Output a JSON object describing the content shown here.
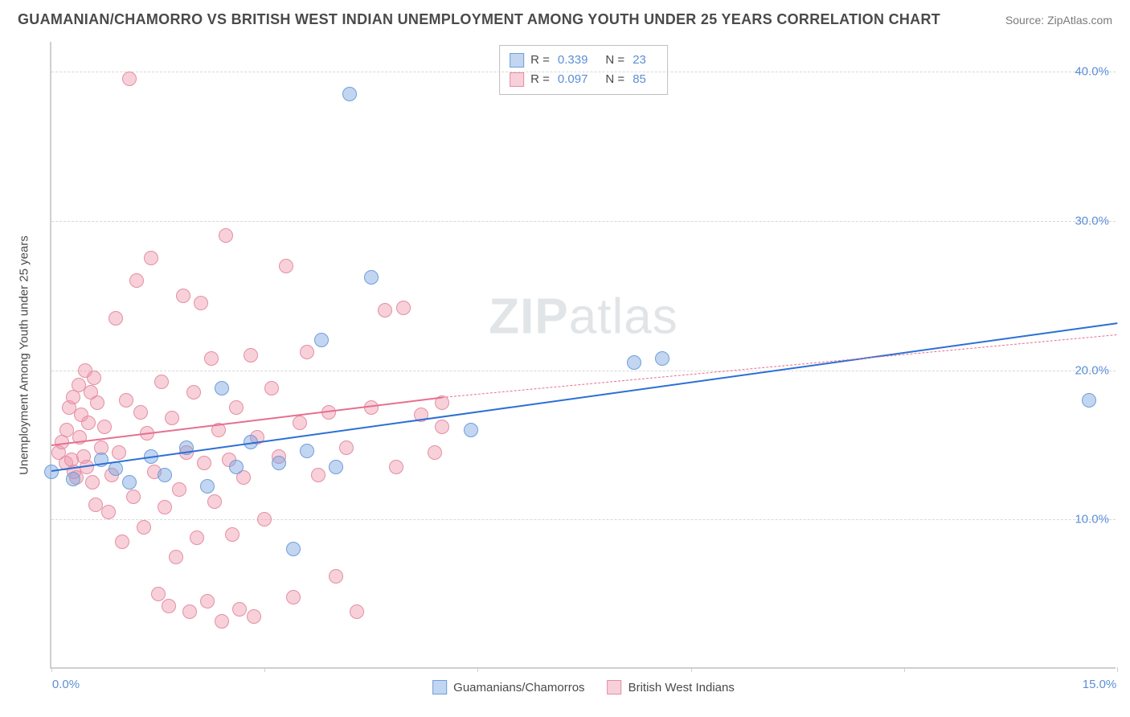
{
  "title": "GUAMANIAN/CHAMORRO VS BRITISH WEST INDIAN UNEMPLOYMENT AMONG YOUTH UNDER 25 YEARS CORRELATION CHART",
  "source": "Source: ZipAtlas.com",
  "y_axis_label": "Unemployment Among Youth under 25 years",
  "watermark_a": "ZIP",
  "watermark_b": "atlas",
  "chart": {
    "type": "scatter",
    "background_color": "#ffffff",
    "grid_color": "#d8d8d8",
    "axis_color": "#cfcfcf",
    "xlim": [
      0,
      15
    ],
    "ylim": [
      0,
      42
    ],
    "x_ticks": [
      0,
      3,
      6,
      9,
      12,
      15
    ],
    "x_tick_labels": {
      "0": "0.0%",
      "15": "15.0%"
    },
    "y_ticks": [
      10,
      20,
      30,
      40
    ],
    "y_tick_labels": {
      "10": "10.0%",
      "20": "20.0%",
      "30": "30.0%",
      "40": "40.0%"
    },
    "tick_label_color": "#5b8fd6",
    "marker_radius": 9,
    "marker_opacity": 0.55,
    "watermark_color": "rgba(120,135,150,0.22)"
  },
  "series_a": {
    "name": "Guamanians/Chamorros",
    "color_fill": "rgba(120,165,225,0.45)",
    "color_stroke": "#6f9edb",
    "trend_color": "#2b6fd6",
    "R": "0.339",
    "N": "23",
    "trend": {
      "x1": 0,
      "y1": 13.3,
      "x2": 15,
      "y2": 23.2
    },
    "points": [
      [
        0.0,
        13.2
      ],
      [
        0.3,
        12.7
      ],
      [
        0.7,
        14.0
      ],
      [
        0.9,
        13.4
      ],
      [
        1.1,
        12.5
      ],
      [
        1.4,
        14.2
      ],
      [
        1.6,
        13.0
      ],
      [
        1.9,
        14.8
      ],
      [
        2.2,
        12.2
      ],
      [
        2.4,
        18.8
      ],
      [
        2.6,
        13.5
      ],
      [
        2.8,
        15.2
      ],
      [
        3.2,
        13.8
      ],
      [
        3.4,
        8.0
      ],
      [
        3.6,
        14.6
      ],
      [
        3.8,
        22.0
      ],
      [
        4.0,
        13.5
      ],
      [
        4.2,
        38.5
      ],
      [
        4.5,
        26.2
      ],
      [
        5.9,
        16.0
      ],
      [
        8.2,
        20.5
      ],
      [
        8.6,
        20.8
      ],
      [
        14.6,
        18.0
      ]
    ]
  },
  "series_b": {
    "name": "British West Indians",
    "color_fill": "rgba(240,150,170,0.45)",
    "color_stroke": "#e38fa3",
    "trend_color": "#e66f8f",
    "R": "0.097",
    "N": "85",
    "trend_solid": {
      "x1": 0,
      "y1": 15.0,
      "x2": 5.5,
      "y2": 18.2
    },
    "trend_dashed": {
      "x1": 5.5,
      "y1": 18.2,
      "x2": 15,
      "y2": 22.4
    },
    "points": [
      [
        0.1,
        14.5
      ],
      [
        0.15,
        15.2
      ],
      [
        0.2,
        13.8
      ],
      [
        0.22,
        16.0
      ],
      [
        0.25,
        17.5
      ],
      [
        0.28,
        14.0
      ],
      [
        0.3,
        18.2
      ],
      [
        0.32,
        13.2
      ],
      [
        0.35,
        12.8
      ],
      [
        0.38,
        19.0
      ],
      [
        0.4,
        15.5
      ],
      [
        0.42,
        17.0
      ],
      [
        0.45,
        14.2
      ],
      [
        0.48,
        20.0
      ],
      [
        0.5,
        13.5
      ],
      [
        0.52,
        16.5
      ],
      [
        0.55,
        18.5
      ],
      [
        0.58,
        12.5
      ],
      [
        0.6,
        19.5
      ],
      [
        0.62,
        11.0
      ],
      [
        0.65,
        17.8
      ],
      [
        0.7,
        14.8
      ],
      [
        0.75,
        16.2
      ],
      [
        0.8,
        10.5
      ],
      [
        0.85,
        13.0
      ],
      [
        0.9,
        23.5
      ],
      [
        0.95,
        14.5
      ],
      [
        1.0,
        8.5
      ],
      [
        1.05,
        18.0
      ],
      [
        1.1,
        39.5
      ],
      [
        1.15,
        11.5
      ],
      [
        1.2,
        26.0
      ],
      [
        1.25,
        17.2
      ],
      [
        1.3,
        9.5
      ],
      [
        1.35,
        15.8
      ],
      [
        1.4,
        27.5
      ],
      [
        1.45,
        13.2
      ],
      [
        1.5,
        5.0
      ],
      [
        1.55,
        19.2
      ],
      [
        1.6,
        10.8
      ],
      [
        1.65,
        4.2
      ],
      [
        1.7,
        16.8
      ],
      [
        1.75,
        7.5
      ],
      [
        1.8,
        12.0
      ],
      [
        1.85,
        25.0
      ],
      [
        1.9,
        14.5
      ],
      [
        1.95,
        3.8
      ],
      [
        2.0,
        18.5
      ],
      [
        2.05,
        8.8
      ],
      [
        2.1,
        24.5
      ],
      [
        2.15,
        13.8
      ],
      [
        2.2,
        4.5
      ],
      [
        2.25,
        20.8
      ],
      [
        2.3,
        11.2
      ],
      [
        2.35,
        16.0
      ],
      [
        2.4,
        3.2
      ],
      [
        2.45,
        29.0
      ],
      [
        2.5,
        14.0
      ],
      [
        2.55,
        9.0
      ],
      [
        2.6,
        17.5
      ],
      [
        2.65,
        4.0
      ],
      [
        2.7,
        12.8
      ],
      [
        2.8,
        21.0
      ],
      [
        2.85,
        3.5
      ],
      [
        2.9,
        15.5
      ],
      [
        3.0,
        10.0
      ],
      [
        3.1,
        18.8
      ],
      [
        3.2,
        14.2
      ],
      [
        3.3,
        27.0
      ],
      [
        3.4,
        4.8
      ],
      [
        3.5,
        16.5
      ],
      [
        3.6,
        21.2
      ],
      [
        3.75,
        13.0
      ],
      [
        3.9,
        17.2
      ],
      [
        4.0,
        6.2
      ],
      [
        4.15,
        14.8
      ],
      [
        4.3,
        3.8
      ],
      [
        4.5,
        17.5
      ],
      [
        4.7,
        24.0
      ],
      [
        4.85,
        13.5
      ],
      [
        4.95,
        24.2
      ],
      [
        5.2,
        17.0
      ],
      [
        5.5,
        16.2
      ],
      [
        5.5,
        17.8
      ],
      [
        5.4,
        14.5
      ]
    ]
  },
  "legend_labels": {
    "R": "R =",
    "N": "N ="
  }
}
